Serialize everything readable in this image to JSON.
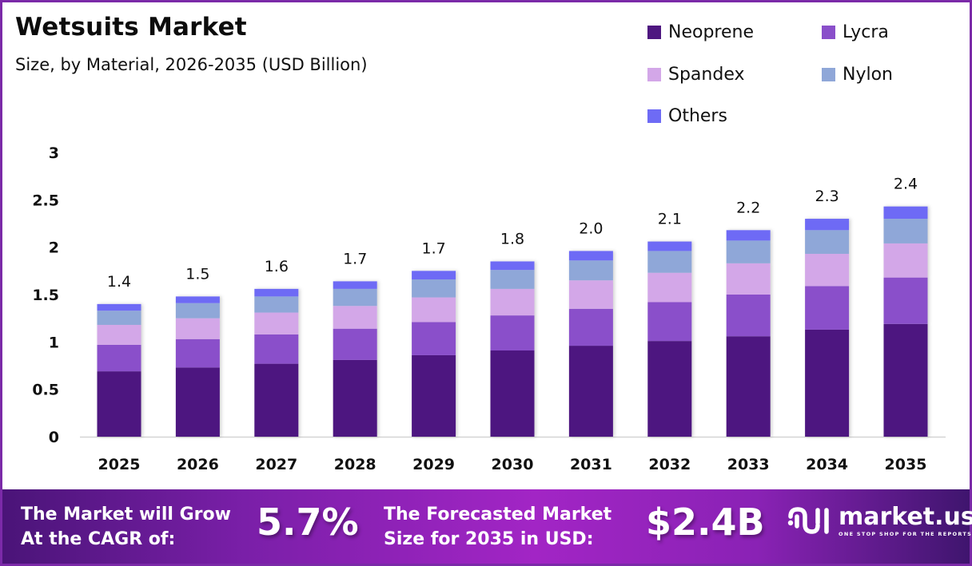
{
  "header": {
    "title": "Wetsuits Market",
    "subtitle": "Size, by Material, 2026-2035 (USD Billion)"
  },
  "legend": [
    {
      "label": "Neoprene",
      "color": "#4e1780"
    },
    {
      "label": "Lycra",
      "color": "#8a4fca"
    },
    {
      "label": "Spandex",
      "color": "#d3a7e8"
    },
    {
      "label": "Nylon",
      "color": "#8fa7d8"
    },
    {
      "label": "Others",
      "color": "#6e6bf5"
    }
  ],
  "chart_data": {
    "type": "bar",
    "stacked": true,
    "title": "Wetsuits Market",
    "subtitle": "Size, by Material, 2026-2035 (USD Billion)",
    "xlabel": "",
    "ylabel": "",
    "ylim": [
      0,
      3
    ],
    "yticks": [
      0,
      0.5,
      1,
      1.5,
      2,
      2.5,
      3
    ],
    "ytick_labels": [
      "0",
      "0.5",
      "1",
      "1.5",
      "2",
      "2.5",
      "3"
    ],
    "grid": false,
    "legend_position": "top-right",
    "categories": [
      "2025",
      "2026",
      "2027",
      "2028",
      "2029",
      "2030",
      "2031",
      "2032",
      "2033",
      "2034",
      "2035"
    ],
    "series": [
      {
        "name": "Neoprene",
        "color": "#4e1780",
        "values": [
          0.69,
          0.73,
          0.77,
          0.81,
          0.86,
          0.91,
          0.96,
          1.01,
          1.06,
          1.13,
          1.19
        ]
      },
      {
        "name": "Lycra",
        "color": "#8a4fca",
        "values": [
          0.28,
          0.3,
          0.31,
          0.33,
          0.35,
          0.37,
          0.39,
          0.41,
          0.44,
          0.46,
          0.49
        ]
      },
      {
        "name": "Spandex",
        "color": "#d3a7e8",
        "values": [
          0.21,
          0.22,
          0.23,
          0.24,
          0.26,
          0.28,
          0.3,
          0.31,
          0.33,
          0.34,
          0.36
        ]
      },
      {
        "name": "Nylon",
        "color": "#8fa7d8",
        "values": [
          0.15,
          0.16,
          0.17,
          0.18,
          0.19,
          0.2,
          0.21,
          0.23,
          0.24,
          0.25,
          0.26
        ]
      },
      {
        "name": "Others",
        "color": "#6e6bf5",
        "values": [
          0.07,
          0.07,
          0.08,
          0.08,
          0.09,
          0.09,
          0.1,
          0.1,
          0.11,
          0.12,
          0.13
        ]
      }
    ],
    "totals": [
      1.4,
      1.5,
      1.6,
      1.7,
      1.7,
      1.8,
      2.0,
      2.1,
      2.2,
      2.3,
      2.4
    ],
    "total_labels": [
      "1.4",
      "1.5",
      "1.6",
      "1.7",
      "1.7",
      "1.8",
      "2.0",
      "2.1",
      "2.2",
      "2.3",
      "2.4"
    ]
  },
  "banner": {
    "cagr_text_line1": "The Market will Grow",
    "cagr_text_line2": "At the CAGR of:",
    "cagr_value": "5.7%",
    "forecast_text_line1": "The Forecasted Market",
    "forecast_text_line2": "Size for 2035 in USD:",
    "forecast_value": "$2.4B",
    "logo_name": "market.us",
    "logo_tagline": "ONE STOP SHOP FOR THE REPORTS"
  }
}
